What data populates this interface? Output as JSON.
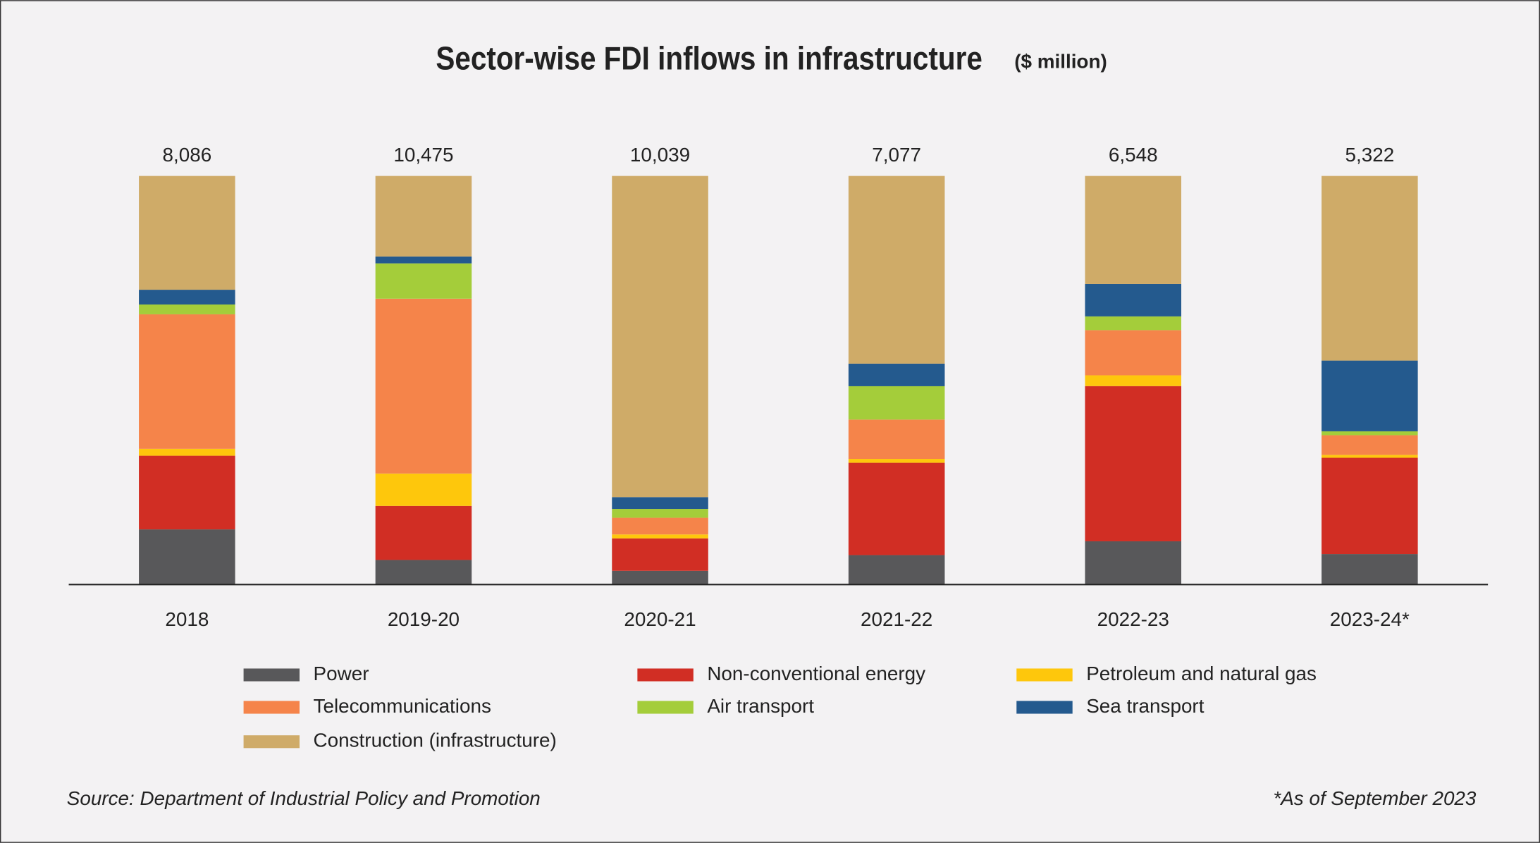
{
  "chart_data": {
    "type": "stacked_bar_percent",
    "title": "Sector-wise FDI inflows in infrastructure",
    "subtitle": "($ million)",
    "categories": [
      "2018",
      "2019-20",
      "2020-21",
      "2021-22",
      "2022-23",
      "2023-24*"
    ],
    "totals": {
      "values": [
        8086,
        10475,
        10039,
        7077,
        6548,
        5322
      ],
      "value_labels": [
        "8,086",
        "10,475",
        "10,039",
        "7,077",
        "6,548",
        "5,322"
      ]
    },
    "series": [
      {
        "name": "Power",
        "color": "#58585a",
        "values": [
          1091,
          630,
          338,
          510,
          693,
          397
        ]
      },
      {
        "name": "Non-conventional energy",
        "color": "#d12e24",
        "values": [
          1458,
          1385,
          796,
          1599,
          2487,
          1254
        ]
      },
      {
        "name": "Petroleum and natural gas",
        "color": "#fec70c",
        "values": [
          136,
          831,
          97,
          68,
          173,
          38
        ]
      },
      {
        "name": "Telecommunications",
        "color": "#f5844a",
        "values": [
          2663,
          4482,
          410,
          680,
          724,
          256
        ]
      },
      {
        "name": "Air transport",
        "color": "#a4cd3a",
        "values": [
          194,
          906,
          217,
          578,
          220,
          51
        ]
      },
      {
        "name": "Sea transport",
        "color": "#245a8e",
        "values": [
          292,
          176,
          290,
          391,
          519,
          921
        ]
      },
      {
        "name": "Construction (infrastructure)",
        "color": "#cfab68",
        "values": [
          2252,
          2065,
          7891,
          3251,
          1732,
          2405
        ]
      }
    ],
    "source": "Source: Department of Industrial Policy and Promotion",
    "footnote": "*As of September 2023"
  }
}
